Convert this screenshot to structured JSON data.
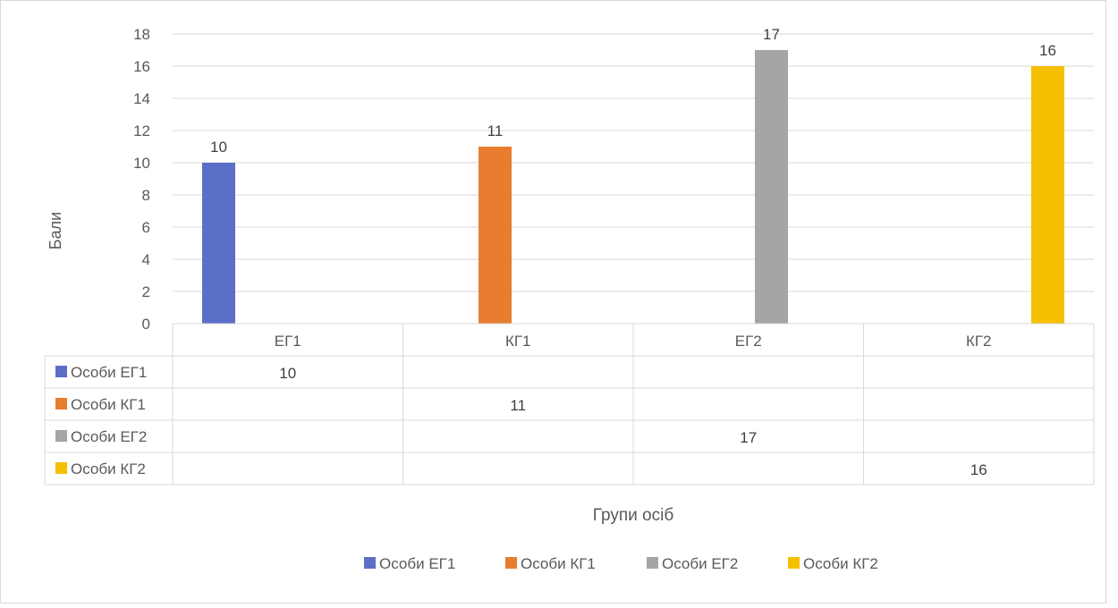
{
  "chart_data": {
    "type": "bar",
    "title": "",
    "xlabel": "Групи осіб",
    "ylabel": "Бали",
    "categories": [
      "ЕГ1",
      "КГ1",
      "ЕГ2",
      "КГ2"
    ],
    "ylim": [
      0,
      18
    ],
    "y_ticks": [
      0,
      2,
      4,
      6,
      8,
      10,
      12,
      14,
      16,
      18
    ],
    "grid": true,
    "legend": "bottom",
    "data_table": true,
    "series": [
      {
        "name": "Особи ЕГ1",
        "color": "#5B6FC8",
        "values": [
          10,
          null,
          null,
          null
        ]
      },
      {
        "name": "Особи КГ1",
        "color": "#E87D2F",
        "values": [
          null,
          11,
          null,
          null
        ]
      },
      {
        "name": "Особи ЕГ2",
        "color": "#A5A5A5",
        "values": [
          null,
          null,
          17,
          null
        ]
      },
      {
        "name": "Особи КГ2",
        "color": "#F5C000",
        "values": [
          null,
          null,
          null,
          16
        ]
      }
    ]
  }
}
